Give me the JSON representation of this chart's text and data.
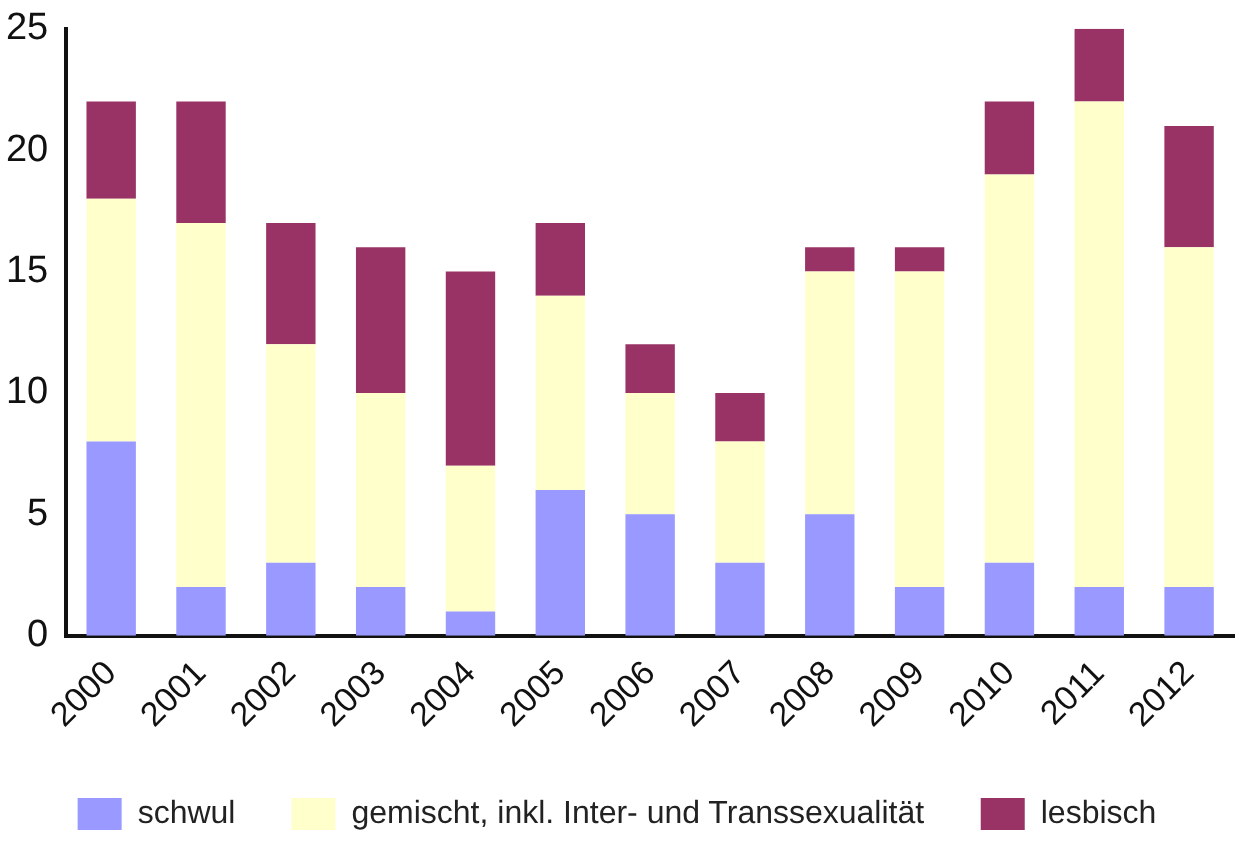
{
  "chart_data": {
    "type": "bar",
    "stacked": true,
    "categories": [
      "2000",
      "2001",
      "2002",
      "2003",
      "2004",
      "2005",
      "2006",
      "2007",
      "2008",
      "2009",
      "2010",
      "2011",
      "2012"
    ],
    "series": [
      {
        "name": "schwul",
        "color": "#9999ff",
        "values": [
          8,
          2,
          3,
          2,
          1,
          6,
          5,
          3,
          5,
          2,
          3,
          2,
          2
        ]
      },
      {
        "name": "gemischt, inkl. Inter- und Transsexualität",
        "color": "#ffffcc",
        "values": [
          10,
          15,
          9,
          8,
          6,
          8,
          5,
          5,
          10,
          13,
          16,
          20,
          14
        ]
      },
      {
        "name": "lesbisch",
        "color": "#993366",
        "values": [
          4,
          5,
          5,
          6,
          8,
          3,
          2,
          2,
          1,
          1,
          3,
          3,
          5
        ]
      }
    ],
    "ylim": [
      0,
      25
    ],
    "yticks": [
      0,
      5,
      10,
      15,
      20,
      25
    ],
    "grid": false,
    "legend": "bottom"
  }
}
